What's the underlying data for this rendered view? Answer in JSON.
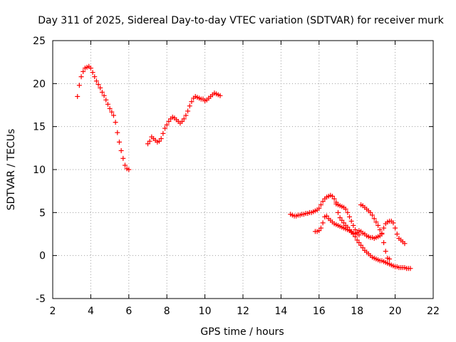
{
  "chart_data": {
    "type": "scatter",
    "title": "Day 311 of 2025, Sidereal Day-to-day VTEC variation (SDTVAR) for receiver murk",
    "xlabel": "GPS time / hours",
    "ylabel": "SDTVAR / TECUs",
    "xlim": [
      2,
      22
    ],
    "ylim": [
      -5,
      25
    ],
    "xticks": [
      2,
      4,
      6,
      8,
      10,
      12,
      14,
      16,
      18,
      20,
      22
    ],
    "yticks": [
      -5,
      0,
      5,
      10,
      15,
      20,
      25
    ],
    "xtick_labels": [
      "2",
      "4",
      "6",
      "8",
      "10",
      "12",
      "14",
      "16",
      "18",
      "20",
      "22"
    ],
    "ytick_labels": [
      "-5",
      "0",
      "5",
      "10",
      "15",
      "20",
      "25"
    ],
    "grid": true,
    "marker": "+",
    "color": "#ff0000",
    "series": [
      {
        "name": "segment-1",
        "x": [
          3.3,
          3.4,
          3.5,
          3.6,
          3.7,
          3.8,
          3.9,
          4.0,
          4.1,
          4.2,
          4.3,
          4.4,
          4.5,
          4.6,
          4.7,
          4.8,
          4.9,
          5.0,
          5.1,
          5.2,
          5.3,
          5.4,
          5.5,
          5.6,
          5.7,
          5.8,
          5.9,
          6.0
        ],
        "y": [
          18.5,
          19.8,
          20.8,
          21.4,
          21.8,
          21.9,
          22.0,
          21.8,
          21.3,
          20.8,
          20.3,
          19.9,
          19.5,
          19.0,
          18.6,
          18.1,
          17.6,
          17.1,
          16.7,
          16.3,
          15.5,
          14.3,
          13.2,
          12.2,
          11.3,
          10.5,
          10.1,
          10.0
        ]
      },
      {
        "name": "segment-2",
        "x": [
          7.0,
          7.1,
          7.2,
          7.3,
          7.4,
          7.5,
          7.6,
          7.7,
          7.8,
          7.9,
          8.0,
          8.1,
          8.2,
          8.3,
          8.4,
          8.5,
          8.6,
          8.7,
          8.8,
          8.9,
          9.0,
          9.1,
          9.2,
          9.3,
          9.4,
          9.5,
          9.6,
          9.7,
          9.8,
          9.9,
          10.0,
          10.1,
          10.2,
          10.3,
          10.4,
          10.5,
          10.6,
          10.7,
          10.8
        ],
        "y": [
          13.0,
          13.3,
          13.8,
          13.6,
          13.4,
          13.2,
          13.3,
          13.6,
          14.2,
          14.8,
          15.2,
          15.6,
          15.9,
          16.1,
          16.0,
          15.8,
          15.6,
          15.4,
          15.6,
          15.9,
          16.3,
          16.8,
          17.4,
          17.9,
          18.3,
          18.5,
          18.4,
          18.3,
          18.2,
          18.2,
          18.0,
          18.1,
          18.3,
          18.5,
          18.7,
          18.9,
          18.8,
          18.7,
          18.6
        ]
      },
      {
        "name": "segment-3",
        "x": [
          14.5,
          14.6,
          14.7,
          14.8,
          14.9,
          15.0,
          15.1,
          15.2,
          15.3,
          15.4,
          15.5,
          15.6,
          15.7,
          15.8,
          15.9,
          16.0,
          16.1,
          16.2,
          16.3,
          16.4,
          16.5,
          16.6,
          16.7,
          16.8,
          16.9,
          17.0,
          17.1,
          17.2,
          17.3,
          17.4,
          17.5,
          17.6,
          17.7,
          17.8,
          17.9,
          18.0,
          18.1,
          18.2,
          18.3,
          18.4,
          18.5,
          18.6,
          18.7,
          18.8,
          18.9,
          19.0,
          19.1,
          19.2,
          19.3,
          19.4,
          19.5,
          19.6,
          19.7,
          19.8,
          19.9,
          20.0,
          20.1,
          20.2,
          20.3,
          20.4,
          20.5,
          20.6,
          20.7,
          20.8
        ],
        "y": [
          4.8,
          4.7,
          4.6,
          4.6,
          4.7,
          4.7,
          4.8,
          4.8,
          4.9,
          4.9,
          5.0,
          5.0,
          5.1,
          5.2,
          5.3,
          5.5,
          5.9,
          6.3,
          6.6,
          6.8,
          6.9,
          7.0,
          6.9,
          6.6,
          6.0,
          5.0,
          4.4,
          4.1,
          3.8,
          3.5,
          3.3,
          3.0,
          2.8,
          2.5,
          2.2,
          1.8,
          1.5,
          1.2,
          0.9,
          0.6,
          0.4,
          0.2,
          0.0,
          -0.2,
          -0.3,
          -0.4,
          -0.5,
          -0.6,
          -0.6,
          -0.7,
          -0.8,
          -0.9,
          -1.0,
          -1.1,
          -1.2,
          -1.3,
          -1.3,
          -1.4,
          -1.4,
          -1.4,
          -1.4,
          -1.5,
          -1.5,
          -1.5
        ]
      },
      {
        "name": "segment-4",
        "x": [
          15.8,
          15.9,
          16.0,
          16.1,
          16.2,
          16.3,
          16.4,
          16.5,
          16.6,
          16.7,
          16.8,
          16.9,
          17.0,
          17.1,
          17.2,
          17.3,
          17.4,
          17.5,
          17.6,
          17.7,
          17.8,
          17.9,
          18.0,
          18.1,
          18.2,
          18.3,
          18.4,
          18.5,
          18.6,
          18.7,
          18.8,
          18.9,
          19.0,
          19.1,
          19.2,
          19.3,
          19.4,
          19.5,
          19.6,
          19.7,
          19.8,
          19.9,
          20.0,
          20.1,
          20.2,
          20.3,
          20.4,
          20.5
        ],
        "y": [
          2.8,
          2.8,
          2.9,
          3.2,
          3.8,
          4.5,
          4.6,
          4.3,
          4.1,
          3.9,
          3.7,
          3.6,
          3.5,
          3.4,
          3.3,
          3.2,
          3.1,
          3.0,
          2.9,
          2.7,
          2.6,
          2.5,
          2.7,
          2.9,
          2.8,
          2.6,
          2.5,
          2.3,
          2.2,
          2.1,
          2.1,
          2.0,
          2.1,
          2.2,
          2.3,
          2.6,
          3.2,
          3.7,
          3.9,
          4.0,
          4.0,
          3.8,
          3.2,
          2.5,
          2.0,
          1.8,
          1.6,
          1.4
        ]
      },
      {
        "name": "segment-5",
        "x": [
          16.9,
          17.0,
          17.1,
          17.2,
          17.3,
          17.4,
          17.5,
          17.6,
          17.7,
          17.8,
          17.9,
          18.0,
          18.1,
          18.2,
          18.3,
          18.4,
          18.5,
          18.6,
          18.7,
          18.8,
          18.9,
          19.0,
          19.1,
          19.2,
          19.3,
          19.4,
          19.5,
          19.6,
          19.7
        ],
        "y": [
          6.2,
          5.9,
          5.8,
          5.7,
          5.6,
          5.4,
          5.0,
          4.5,
          4.0,
          3.5,
          3.0,
          2.6,
          2.4,
          5.9,
          5.8,
          5.6,
          5.4,
          5.2,
          5.0,
          4.7,
          4.3,
          3.9,
          3.5,
          3.0,
          2.5,
          1.5,
          0.5,
          -0.3,
          -0.4
        ]
      }
    ]
  }
}
